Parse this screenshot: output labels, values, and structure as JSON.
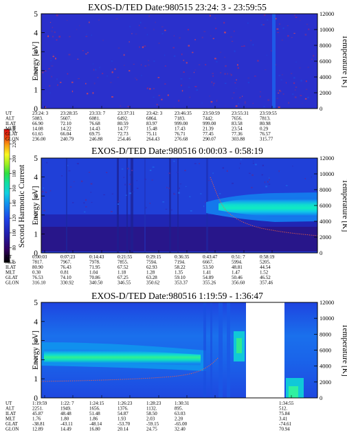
{
  "figure": {
    "ylabel_left": "Energy [eV]",
    "ylabel_right": "Temperature [K]",
    "colorbar_label": "Second Harmonic Current",
    "colorbar_ticks": [
      "0",
      "80",
      "100",
      "120",
      "140",
      "160",
      "180",
      "200",
      "220",
      "240"
    ],
    "energy_ticks": [
      "0",
      "1",
      "2",
      "3",
      "4",
      "5"
    ],
    "temperature_ticks": [
      "0",
      "2000",
      "4000",
      "6000",
      "8000",
      "10000",
      "12000"
    ],
    "row_labels": [
      "UT",
      "ALT",
      "ILAT",
      "MLT",
      "GLAT",
      "GLON"
    ]
  },
  "chart_data": [
    {
      "type": "heatmap",
      "title": "EXOS-D/TED  Date:980515  23:24: 3 - 23:59:55",
      "ylabel": "Energy [eV]",
      "ylabel_right": "Temperature [K]",
      "ylim": [
        0,
        5
      ],
      "ylim_right": [
        0,
        12000
      ],
      "table": {
        "UT": [
          "23:24: 3",
          "23:28:35",
          "23:33: 7",
          "23:37:31",
          "23:42: 3",
          "23:46:35",
          "23:50:59",
          "23:55:31",
          "23:59:55"
        ],
        "ALT": [
          "5083.",
          "5607.",
          "6081.",
          "6492.",
          "6864.",
          "7183.",
          "7442.",
          "7656.",
          "7813."
        ],
        "ILAT": [
          "66.90",
          "72.10",
          "76.68",
          "80.59",
          "83.97",
          "999.00",
          "999.00",
          "83.58",
          "80.98"
        ],
        "MLT": [
          "14.08",
          "14.22",
          "14.43",
          "14.77",
          "15.48",
          "17.43",
          "21.39",
          "23.54",
          "0.29"
        ],
        "GLAT": [
          "61.65",
          "66.04",
          "69.75",
          "72.73",
          "75.11",
          "76.71",
          "77.45",
          "77.36",
          "76.57"
        ],
        "GLON": [
          "236.00",
          "240.79",
          "246.88",
          "254.46",
          "264.43",
          "276.68",
          "290.07",
          "303.88",
          "315.77"
        ]
      }
    },
    {
      "type": "heatmap",
      "title": "EXOS-D/TED   Date:980516  0:00:03 - 0:58:19",
      "ylabel": "Energy [eV]",
      "ylabel_right": "Temperature [K]",
      "ylim": [
        0,
        5
      ],
      "ylim_right": [
        0,
        12000
      ],
      "table": {
        "UT": [
          "0:00:03",
          "0:07:23",
          "0:14:43",
          "0:21:55",
          "0:29:15",
          "0:36:35",
          "0:43:47",
          "0:51: 7",
          "0:58:19"
        ],
        "ALT": [
          "7817.",
          "7967.",
          "7978.",
          "7855.",
          "7594.",
          "7194.",
          "6667.",
          "5994.",
          "5205."
        ],
        "ILAT": [
          "80.90",
          "76.43",
          "71.95",
          "67.52",
          "62.93",
          "58.22",
          "53.50",
          "48.81",
          "44.54"
        ],
        "MLT": [
          "0.30",
          "0.81",
          "1.04",
          "1.18",
          "1.28",
          "1.35",
          "1.41",
          "1.47",
          "1.52"
        ],
        "GLAT": [
          "76.53",
          "74.10",
          "70.86",
          "67.25",
          "63.28",
          "59.10",
          "54.89",
          "50.46",
          "46.52"
        ],
        "GLON": [
          "316.10",
          "330.92",
          "340.50",
          "346.55",
          "350.62",
          "353.37",
          "355.26",
          "356.60",
          "357.46"
        ]
      }
    },
    {
      "type": "heatmap",
      "title": "EXOS-D/TED   Date:980516  1:19:59 - 1:36:47",
      "ylabel": "Energy [eV]",
      "ylabel_right": "Temperature [K]",
      "ylim": [
        0,
        5
      ],
      "ylim_right": [
        0,
        12000
      ],
      "table": {
        "UT": [
          "1:19:59",
          "1:22: 7",
          "1:24:15",
          "1:26:23",
          "1:28:23",
          "1:30:31",
          "",
          "1:34:55"
        ],
        "ALT": [
          "2251.",
          "1949.",
          "1656.",
          "1376.",
          "1132.",
          "895.",
          "",
          "512."
        ],
        "ILAT": [
          "45.87",
          "48.48",
          "51.48",
          "54.87",
          "58.50",
          "63.03",
          "",
          "75.84"
        ],
        "MLT": [
          "1.76",
          "1.80",
          "1.86",
          "1.93",
          "2.03",
          "2.20",
          "",
          "3.41"
        ],
        "GLAT": [
          "-38.81",
          "-43.11",
          "-48.14",
          "-53.70",
          "-59.15",
          "-65.00",
          "",
          "-74.61"
        ],
        "GLON": [
          "12.89",
          "14.49",
          "16.80",
          "20.14",
          "24.75",
          "32.40",
          "",
          "70.94"
        ]
      }
    }
  ]
}
